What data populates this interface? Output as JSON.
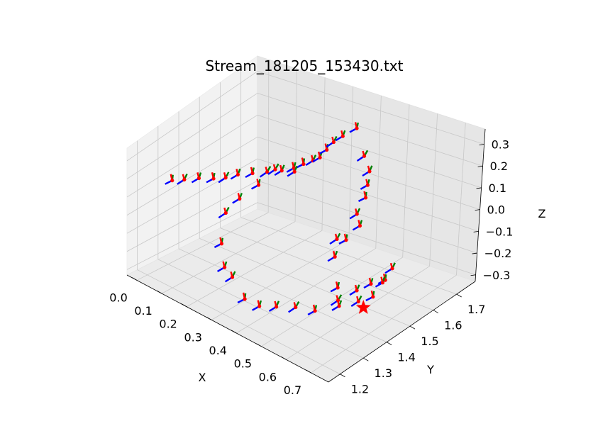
{
  "chart_data": {
    "type": "scatter",
    "title": "Stream_181205_153430.txt",
    "xlabel": "X",
    "ylabel": "Y",
    "zlabel": "Z",
    "xlim": [
      -0.04,
      0.77
    ],
    "ylim": [
      1.15,
      1.78
    ],
    "zlim": [
      -0.33,
      0.37
    ],
    "xticks": [
      "0.0",
      "0.1",
      "0.2",
      "0.3",
      "0.4",
      "0.5",
      "0.6",
      "0.7"
    ],
    "yticks": [
      "1.2",
      "1.3",
      "1.4",
      "1.5",
      "1.6",
      "1.7"
    ],
    "zticks": [
      "-0.3",
      "-0.2",
      "-0.1",
      "0.0",
      "0.1",
      "0.2",
      "0.3"
    ],
    "grid": true,
    "marker": {
      "name": "start",
      "shape": "star",
      "color": "#ff0000",
      "x": 0.62,
      "y": 1.46,
      "z": -0.3
    },
    "frame_axes_colors": {
      "x_axis": "#ff0000",
      "y_axis": "#008000",
      "z_axis": "#0000ff"
    },
    "series": [
      {
        "points": [
          {
            "x": 0.02,
            "y": 1.28,
            "z": 0.15
          },
          {
            "x": 0.05,
            "y": 1.3,
            "z": 0.16
          },
          {
            "x": 0.09,
            "y": 1.32,
            "z": 0.18
          },
          {
            "x": 0.13,
            "y": 1.34,
            "z": 0.19
          },
          {
            "x": 0.16,
            "y": 1.36,
            "z": 0.2
          },
          {
            "x": 0.2,
            "y": 1.37,
            "z": 0.24
          },
          {
            "x": 0.24,
            "y": 1.39,
            "z": 0.26
          },
          {
            "x": 0.28,
            "y": 1.41,
            "z": 0.28
          },
          {
            "x": 0.32,
            "y": 1.43,
            "z": 0.3
          },
          {
            "x": 0.35,
            "y": 1.45,
            "z": 0.32
          },
          {
            "x": 0.37,
            "y": 1.47,
            "z": 0.34
          },
          {
            "x": 0.38,
            "y": 1.5,
            "z": 0.34
          },
          {
            "x": 0.38,
            "y": 1.53,
            "z": 0.33
          },
          {
            "x": 0.37,
            "y": 1.57,
            "z": 0.33
          },
          {
            "x": 0.36,
            "y": 1.61,
            "z": 0.33
          },
          {
            "x": 0.35,
            "y": 1.66,
            "z": 0.31
          },
          {
            "x": 0.35,
            "y": 1.72,
            "z": 0.3
          },
          {
            "x": 0.38,
            "y": 1.72,
            "z": 0.16
          },
          {
            "x": 0.42,
            "y": 1.7,
            "z": 0.12
          },
          {
            "x": 0.45,
            "y": 1.66,
            "z": 0.1
          },
          {
            "x": 0.47,
            "y": 1.63,
            "z": 0.07
          },
          {
            "x": 0.51,
            "y": 1.55,
            "z": 0.08
          },
          {
            "x": 0.55,
            "y": 1.52,
            "z": 0.07
          },
          {
            "x": 0.56,
            "y": 1.45,
            "z": 0.06
          },
          {
            "x": 0.57,
            "y": 1.4,
            "z": 0.12
          },
          {
            "x": 0.59,
            "y": 1.37,
            "z": 0.06
          },
          {
            "x": 0.62,
            "y": 1.35,
            "z": -0.08
          },
          {
            "x": 0.64,
            "y": 1.33,
            "z": -0.12
          },
          {
            "x": 0.65,
            "y": 1.4,
            "z": -0.12
          },
          {
            "x": 0.66,
            "y": 1.45,
            "z": -0.12
          },
          {
            "x": 0.68,
            "y": 1.49,
            "z": -0.12
          },
          {
            "x": 0.68,
            "y": 1.52,
            "z": -0.08
          },
          {
            "x": 0.66,
            "y": 1.5,
            "z": -0.16
          },
          {
            "x": 0.64,
            "y": 1.48,
            "z": -0.24
          },
          {
            "x": 0.6,
            "y": 1.46,
            "z": -0.28
          },
          {
            "x": 0.56,
            "y": 1.42,
            "z": -0.3
          },
          {
            "x": 0.51,
            "y": 1.37,
            "z": -0.32
          },
          {
            "x": 0.46,
            "y": 1.34,
            "z": -0.31
          },
          {
            "x": 0.42,
            "y": 1.3,
            "z": -0.3
          },
          {
            "x": 0.38,
            "y": 1.27,
            "z": -0.3
          },
          {
            "x": 0.34,
            "y": 1.25,
            "z": -0.27
          },
          {
            "x": 0.29,
            "y": 1.25,
            "z": -0.18
          },
          {
            "x": 0.24,
            "y": 1.27,
            "z": -0.18
          },
          {
            "x": 0.2,
            "y": 1.3,
            "z": -0.1
          },
          {
            "x": 0.17,
            "y": 1.35,
            "z": 0.01
          },
          {
            "x": 0.16,
            "y": 1.42,
            "z": 0.02
          },
          {
            "x": 0.18,
            "y": 1.48,
            "z": 0.06
          },
          {
            "x": 0.2,
            "y": 1.53,
            "z": 0.12
          },
          {
            "x": 0.24,
            "y": 1.57,
            "z": 0.1
          }
        ]
      }
    ]
  }
}
